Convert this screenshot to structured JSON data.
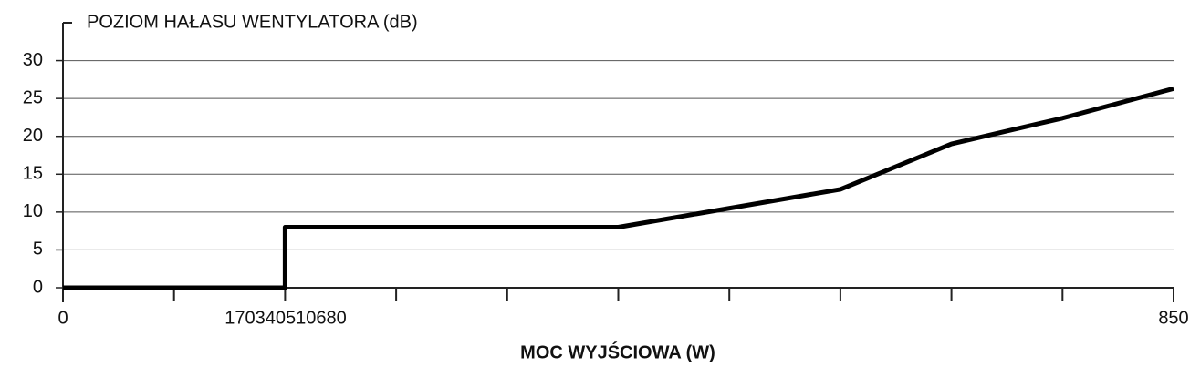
{
  "chart_data": {
    "type": "line",
    "title": "POZIOM HAŁASU WENTYLATORA (dB)",
    "x_label": "MOC WYJŚCIOWA (W)",
    "x": [
      0,
      170,
      170,
      425,
      595,
      680,
      765,
      850
    ],
    "series": [
      {
        "name": "POZIOM HAŁASU WENTYLATORA (dB)",
        "color": "#000000",
        "values": [
          0,
          0,
          8,
          8,
          13,
          19,
          22.4,
          26.3
        ]
      }
    ],
    "xlim": [
      0,
      850
    ],
    "xticks": [
      0,
      850
    ],
    "x_minor_ticks": [
      85,
      170,
      255,
      340,
      425,
      510,
      595,
      680,
      765
    ],
    "x_tick_text": "170340510680",
    "ylim": [
      0,
      35
    ],
    "yticks": [
      0,
      5,
      10,
      15,
      20,
      25,
      30
    ],
    "grid": true
  }
}
